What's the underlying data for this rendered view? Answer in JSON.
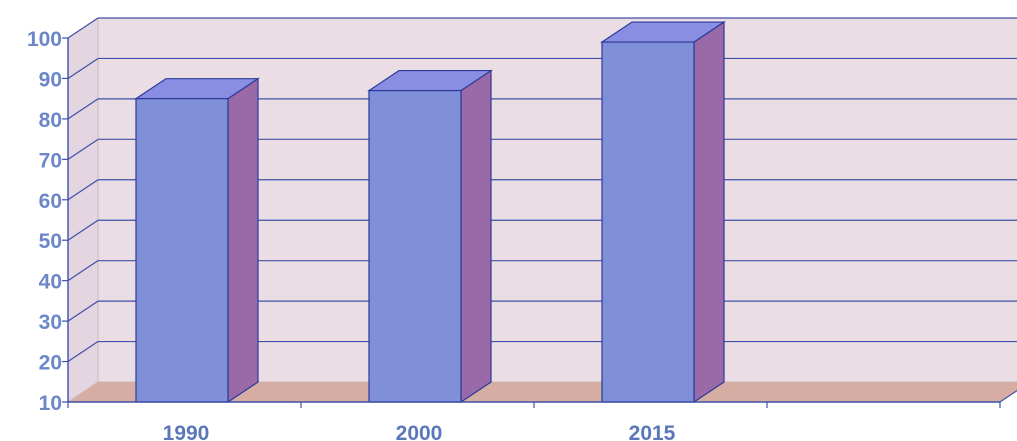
{
  "chart_data": {
    "type": "bar",
    "categories": [
      "1990",
      "2000",
      "2015"
    ],
    "values": [
      85,
      87,
      99
    ],
    "ylim": [
      10,
      100
    ],
    "yticks": [
      "10",
      "20",
      "30",
      "40",
      "50",
      "60",
      "70",
      "80",
      "90",
      "100"
    ],
    "grid": true,
    "three_d": true,
    "colors": {
      "bar_front": "#8090d8",
      "bar_side": "#9a6aa8",
      "bar_top": "#8a8ee2",
      "wall": "#eadde3",
      "floor": "#d6ada3",
      "grid": "#3f51a8",
      "tick_text": "#6b87c8"
    }
  }
}
